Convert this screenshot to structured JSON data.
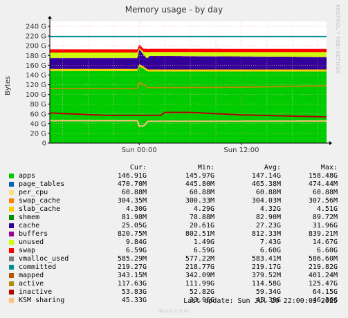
{
  "side_note": "RRDTOOL / TOBI OETIKER",
  "footer": {
    "last_update": "Last update: Sun Jul 20 22:00:03 2025",
    "generator": "Munin 2.0.42"
  },
  "legend_headers": {
    "cur": "Cur:",
    "min": "Min:",
    "avg": "Avg:",
    "max": "Max:"
  },
  "legend": [
    {
      "name": "apps",
      "color": "#00cc00",
      "cur": "146.91G",
      "min": "145.97G",
      "avg": "147.14G",
      "max": "158.48G"
    },
    {
      "name": "page_tables",
      "color": "#0066b3",
      "cur": "470.70M",
      "min": "445.80M",
      "avg": "465.38M",
      "max": "474.44M"
    },
    {
      "name": "per_cpu",
      "color": "#ffe080",
      "cur": "60.88M",
      "min": "60.88M",
      "avg": "60.88M",
      "max": "60.88M"
    },
    {
      "name": "swap_cache",
      "color": "#ff8000",
      "cur": "304.35M",
      "min": "300.33M",
      "avg": "304.03M",
      "max": "307.56M"
    },
    {
      "name": "slab_cache",
      "color": "#ffcc00",
      "cur": "4.30G",
      "min": "4.29G",
      "avg": "4.32G",
      "max": "4.51G"
    },
    {
      "name": "shmem",
      "color": "#008f00",
      "cur": "81.98M",
      "min": "78.88M",
      "avg": "82.90M",
      "max": "89.72M"
    },
    {
      "name": "cache",
      "color": "#330099",
      "cur": "25.05G",
      "min": "20.61G",
      "avg": "27.23G",
      "max": "31.96G"
    },
    {
      "name": "buffers",
      "color": "#990099",
      "cur": "820.75M",
      "min": "802.51M",
      "avg": "812.33M",
      "max": "839.21M"
    },
    {
      "name": "unused",
      "color": "#ccff00",
      "cur": "9.84G",
      "min": "1.49G",
      "avg": "7.43G",
      "max": "14.67G"
    },
    {
      "name": "swap",
      "color": "#ff0000",
      "cur": "6.59G",
      "min": "6.59G",
      "avg": "6.60G",
      "max": "6.60G"
    },
    {
      "name": "vmalloc_used",
      "color": "#808080",
      "cur": "585.29M",
      "min": "577.22M",
      "avg": "583.41M",
      "max": "586.60M"
    },
    {
      "name": "committed",
      "color": "#008f8f",
      "cur": "219.27G",
      "min": "218.77G",
      "avg": "219.17G",
      "max": "219.82G"
    },
    {
      "name": "mapped",
      "color": "#b35a00",
      "cur": "343.15M",
      "min": "342.09M",
      "avg": "379.52M",
      "max": "401.24M"
    },
    {
      "name": "active",
      "color": "#b38f00",
      "cur": "117.63G",
      "min": "111.99G",
      "avg": "114.58G",
      "max": "125.47G"
    },
    {
      "name": "inactive",
      "color": "#b30000",
      "cur": "53.83G",
      "min": "52.82G",
      "avg": "59.34G",
      "max": "64.15G"
    },
    {
      "name": "KSM sharing",
      "color": "#ffc080",
      "cur": "45.33G",
      "min": "33.96G",
      "avg": "45.39G",
      "max": "46.36G"
    }
  ],
  "chart_data": {
    "type": "area",
    "title": "Memory usage - by day",
    "ylabel": "Bytes",
    "ylim": [
      0,
      250
    ],
    "y_unit": "G",
    "y_ticks": [
      0,
      20,
      40,
      60,
      80,
      100,
      120,
      140,
      160,
      180,
      200,
      220,
      240
    ],
    "y_tick_labels": [
      "0",
      "20 G",
      "40 G",
      "60 G",
      "80 G",
      "100 G",
      "120 G",
      "140 G",
      "160 G",
      "180 G",
      "200 G",
      "220 G",
      "240 G"
    ],
    "x_tick_labels": [
      "Sun 00:00",
      "Sun 12:00"
    ],
    "x_hours": [
      -9,
      -6,
      -3,
      0,
      3,
      6,
      9,
      12,
      15,
      18,
      21
    ],
    "grid": true,
    "x_range_hours": [
      -10.5,
      22
    ],
    "stack_series": [
      {
        "name": "apps",
        "x": [
          -10.5,
          -0.2,
          0,
          0.5,
          1,
          2,
          3,
          22
        ],
        "y": [
          148,
          148,
          158,
          153,
          147,
          147,
          147,
          147
        ]
      },
      {
        "name": "slab_cache",
        "x": [
          -10.5,
          22
        ],
        "y": [
          4.3,
          4.3
        ]
      },
      {
        "name": "cache",
        "x": [
          -10.5,
          -0.2,
          0,
          0.5,
          0.9,
          1.2,
          3,
          22
        ],
        "y": [
          22,
          22,
          31,
          24,
          21,
          27,
          27,
          25
        ]
      },
      {
        "name": "buffers",
        "x": [
          -10.5,
          22
        ],
        "y": [
          0.8,
          0.8
        ]
      },
      {
        "name": "unused",
        "x": [
          -10.5,
          -0.2,
          0,
          0.5,
          0.9,
          1.2,
          3,
          22
        ],
        "y": [
          11,
          11,
          2,
          5,
          13,
          8,
          8,
          9.8
        ]
      },
      {
        "name": "swap",
        "x": [
          -10.5,
          22
        ],
        "y": [
          6.6,
          6.6
        ]
      }
    ],
    "line_series": [
      {
        "name": "committed",
        "x": [
          -10.5,
          22
        ],
        "y": [
          219,
          219
        ]
      },
      {
        "name": "active",
        "x": [
          -10.5,
          -0.2,
          0,
          0.5,
          1,
          3,
          12,
          22
        ],
        "y": [
          112,
          112,
          125,
          120,
          114,
          114,
          115,
          117.6
        ]
      },
      {
        "name": "inactive",
        "x": [
          -10.5,
          -4,
          0,
          2.5,
          3,
          6,
          12,
          22
        ],
        "y": [
          62,
          57,
          57,
          57,
          63,
          63,
          58,
          53.8
        ]
      },
      {
        "name": "KSM sharing",
        "x": [
          -10.5,
          -0.2,
          0,
          0.6,
          1,
          3,
          12,
          22
        ],
        "y": [
          46,
          46,
          34,
          36,
          45,
          45,
          45,
          45.3
        ]
      }
    ]
  }
}
